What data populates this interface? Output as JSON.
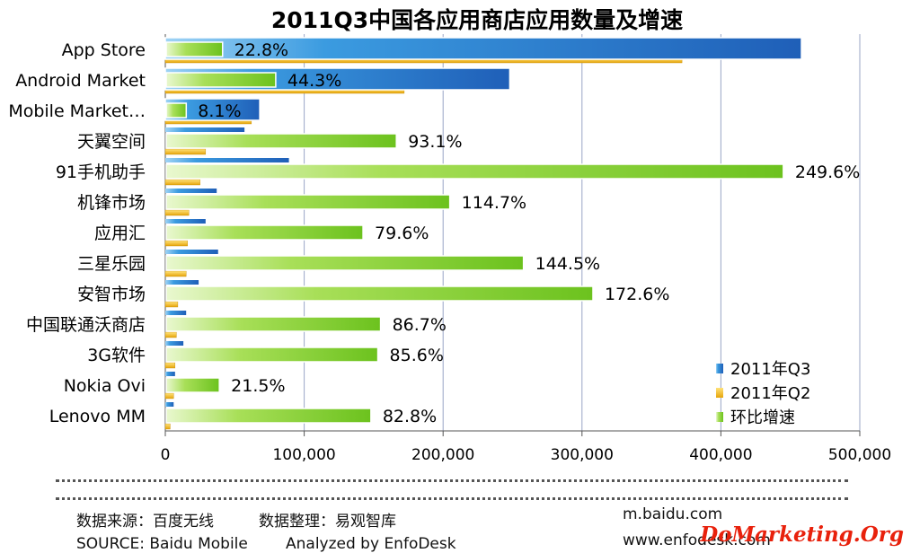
{
  "chart_data": {
    "type": "bar",
    "orientation": "horizontal",
    "title": "2011Q3中国各应用商店应用数量及增速",
    "categories": [
      "App Store",
      "Android Market",
      "Mobile Market…",
      "天翼空间",
      "91手机助手",
      "机锋市场",
      "应用汇",
      "三星乐园",
      "安智市场",
      "中国联通沃商店",
      "3G软件",
      "Nokia Ovi",
      "Lenovo MM"
    ],
    "series": [
      {
        "name": "2011年Q3",
        "color": "#2f7fd0",
        "values": [
          458000,
          248000,
          68000,
          57000,
          89000,
          37000,
          29000,
          38000,
          24000,
          15000,
          13000,
          7000,
          6000
        ]
      },
      {
        "name": "2011年Q2",
        "color": "#f2b51c",
        "values": [
          372000,
          172000,
          62000,
          29000,
          25000,
          17000,
          16000,
          15000,
          9000,
          8000,
          7000,
          6000,
          3500
        ]
      },
      {
        "name": "环比增速",
        "color": "#7ccd2a",
        "values": [
          22.8,
          44.3,
          8.1,
          93.1,
          249.6,
          114.7,
          79.6,
          144.5,
          172.6,
          86.7,
          85.6,
          21.5,
          82.8
        ]
      }
    ],
    "growth_labels": [
      "22.8%",
      "44.3%",
      "8.1%",
      "93.1%",
      "249.6%",
      "114.7%",
      "79.6%",
      "144.5%",
      "172.6%",
      "86.7%",
      "85.6%",
      "21.5%",
      "82.8%"
    ],
    "x_ticks": [
      "0",
      "100,000",
      "200,000",
      "300,000",
      "400,000",
      "500,000"
    ],
    "xlim": [
      0,
      500000
    ],
    "grid": true,
    "legend_position": "bottom-right"
  },
  "footer": {
    "cn_source": "数据来源：百度无线",
    "cn_analysis": "数据整理：易观智库",
    "en_source": "SOURCE: Baidu Mobile",
    "en_analysis": "Analyzed by EnfoDesk",
    "url1": "m.baidu.com",
    "url2": "www.enfodesk.com",
    "brand": "DoMarketing.Org"
  }
}
